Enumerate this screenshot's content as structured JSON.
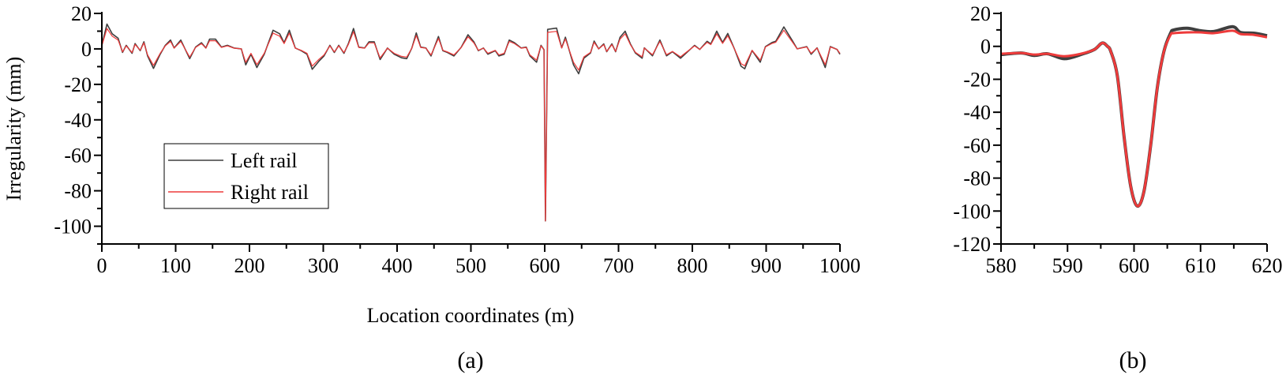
{
  "chart_data": [
    {
      "type": "line",
      "panel_label": "(a)",
      "xlabel": "Location coordinates (m)",
      "ylabel": "Irregularity (mm)",
      "xlim": [
        0,
        1000
      ],
      "ylim": [
        -110,
        20
      ],
      "xticks": [
        "0",
        "100",
        "200",
        "300",
        "400",
        "500",
        "600",
        "700",
        "800",
        "900",
        "1000"
      ],
      "yticks": [
        "20",
        "0",
        "-20",
        "-40",
        "-60",
        "-80",
        "-100"
      ],
      "grid": false,
      "legend": "center-left",
      "series": [
        {
          "name": "Left rail",
          "color": "#3f3f3f",
          "x": [
            0,
            7,
            14,
            22,
            28,
            33,
            41,
            45,
            52,
            57,
            62,
            70,
            79,
            86,
            93,
            98,
            107,
            119,
            127,
            135,
            141,
            146,
            154,
            162,
            170,
            179,
            189,
            195,
            202,
            210,
            220,
            232,
            241,
            247,
            254,
            262,
            270,
            278,
            285,
            294,
            301,
            309,
            315,
            321,
            328,
            334,
            341,
            348,
            356,
            362,
            369,
            377,
            387,
            396,
            406,
            413,
            420,
            426,
            432,
            439,
            446,
            456,
            462,
            468,
            477,
            487,
            496,
            504,
            510,
            517,
            523,
            533,
            538,
            545,
            552,
            559,
            568,
            575,
            580,
            589,
            595,
            599,
            601,
            604,
            616,
            623,
            628,
            639,
            646,
            653,
            662,
            667,
            673,
            680,
            684,
            691,
            696,
            702,
            709,
            716,
            723,
            732,
            735,
            746,
            756,
            765,
            773,
            784,
            790,
            803,
            810,
            820,
            825,
            833,
            841,
            848,
            857,
            866,
            871,
            881,
            892,
            899,
            908,
            913,
            924,
            935,
            942,
            955,
            961,
            969,
            980,
            987,
            996,
            1000
          ],
          "y": [
            2,
            14,
            8.5,
            6,
            -2,
            2,
            -2.5,
            3,
            -1,
            4,
            -4,
            -11,
            -3,
            2,
            5,
            0.5,
            5,
            -5.5,
            1,
            3.5,
            0.5,
            5.5,
            5.5,
            1,
            2,
            0.5,
            0,
            -9,
            -3,
            -10.5,
            -3,
            10.5,
            8.5,
            3.5,
            10.5,
            0.5,
            -1,
            -3,
            -11.5,
            -7,
            -4,
            2,
            -2,
            2,
            -2.5,
            3,
            11.5,
            1,
            0.5,
            4,
            4,
            -6,
            0.5,
            -3,
            -5,
            -5.5,
            0.5,
            9,
            1,
            0.5,
            -4,
            7,
            -1,
            -2,
            -4,
            1,
            8,
            4,
            -1,
            0.5,
            -3,
            -1,
            -4,
            -3,
            5,
            3.5,
            0.5,
            1,
            -4,
            -7.5,
            2,
            -0.5,
            -97,
            11,
            11.7,
            0.6,
            6.6,
            -9,
            -14,
            -5.3,
            -2.3,
            4.4,
            0,
            2.8,
            -1.6,
            2.8,
            -1.6,
            6.5,
            10,
            2.8,
            -2.4,
            -5.3,
            0.6,
            -3.9,
            5,
            -3.9,
            -1.6,
            -5.3,
            -3,
            2,
            -0.3,
            4.3,
            2.8,
            10,
            3.6,
            8.7,
            0,
            -9.8,
            -11.2,
            -0.9,
            -7.5,
            1.3,
            3.6,
            4.3,
            12.4,
            5,
            0,
            1.3,
            -3,
            0.6,
            -10.5,
            1.3,
            -0.3,
            -3
          ]
        },
        {
          "name": "Right rail",
          "color": "#ee3b3b",
          "x": [
            0,
            7,
            14,
            22,
            28,
            33,
            41,
            45,
            52,
            57,
            62,
            70,
            79,
            86,
            93,
            98,
            107,
            119,
            127,
            135,
            141,
            146,
            154,
            162,
            170,
            179,
            189,
            195,
            202,
            210,
            220,
            232,
            241,
            247,
            254,
            262,
            270,
            278,
            285,
            294,
            301,
            309,
            315,
            321,
            328,
            334,
            341,
            348,
            356,
            362,
            369,
            377,
            387,
            396,
            406,
            413,
            420,
            426,
            432,
            439,
            446,
            456,
            462,
            468,
            477,
            487,
            496,
            504,
            510,
            517,
            523,
            533,
            538,
            545,
            552,
            559,
            568,
            575,
            580,
            589,
            595,
            599,
            601,
            604,
            616,
            623,
            628,
            639,
            646,
            653,
            662,
            667,
            673,
            680,
            684,
            691,
            696,
            702,
            709,
            716,
            723,
            732,
            735,
            746,
            756,
            765,
            773,
            784,
            790,
            803,
            810,
            820,
            825,
            833,
            841,
            848,
            857,
            866,
            871,
            881,
            892,
            899,
            908,
            913,
            924,
            935,
            942,
            955,
            961,
            969,
            980,
            987,
            996,
            1000
          ],
          "y": [
            1.7,
            11.5,
            7.2,
            5,
            -1.7,
            1.7,
            -2.1,
            2.5,
            -0.8,
            3.4,
            -3.4,
            -9.3,
            -2.5,
            1.7,
            4.2,
            0.4,
            4.2,
            -4.6,
            0.8,
            3,
            0.4,
            4.6,
            4.6,
            0.8,
            1.7,
            0.4,
            0,
            -7.6,
            -2.5,
            -8.9,
            -2.5,
            8.9,
            7.2,
            3,
            8.9,
            0.4,
            -0.8,
            -2.5,
            -9.7,
            -5.9,
            -3.4,
            1.7,
            -1.7,
            1.7,
            -2.1,
            2.5,
            9.7,
            0.8,
            0.4,
            3.4,
            3.4,
            -5.1,
            0.4,
            -2.5,
            -4.2,
            -4.6,
            0.4,
            7.6,
            0.8,
            0.4,
            -3.4,
            5.9,
            -0.8,
            -1.7,
            -3.4,
            0.8,
            6.8,
            3.4,
            -0.8,
            0.4,
            -2.5,
            -0.8,
            -3.4,
            -2.5,
            4.2,
            3,
            0.4,
            0.8,
            -3.4,
            -6.3,
            1.7,
            -0.4,
            -97,
            9.3,
            9.9,
            0.5,
            5.6,
            -7.6,
            -11.9,
            -4.5,
            -2,
            3.7,
            0,
            2.4,
            -1.4,
            2.4,
            -1.4,
            5.5,
            8.5,
            2.4,
            -2,
            -4.5,
            0.5,
            -3.3,
            4.2,
            -3.3,
            -1.4,
            -4.5,
            -2.5,
            1.7,
            -0.3,
            3.7,
            2.4,
            8.5,
            3.1,
            7.4,
            0,
            -8.3,
            -9.5,
            -0.8,
            -6.4,
            1.1,
            3.1,
            3.7,
            10.5,
            4.2,
            0,
            1.1,
            -2.5,
            0.5,
            -8.9,
            1.1,
            -0.3,
            -2.5
          ]
        }
      ]
    },
    {
      "type": "line",
      "panel_label": "(b)",
      "xlabel": "",
      "ylabel": "",
      "xlim": [
        580,
        620
      ],
      "ylim": [
        -120,
        20
      ],
      "xticks": [
        "580",
        "590",
        "600",
        "610",
        "620"
      ],
      "yticks": [
        "20",
        "0",
        "-20",
        "-40",
        "-60",
        "-80",
        "-100",
        "-120"
      ],
      "grid": false,
      "series": [
        {
          "color": "#3f3f3f",
          "x": [
            580,
            583,
            585,
            587,
            589.5,
            592,
            594,
            595.2,
            596,
            596.5,
            597.5,
            598.5,
            599.5,
            600.5,
            601.5,
            602.5,
            603.5,
            604.5,
            605.5,
            606,
            608,
            610,
            612,
            614.8,
            616,
            618,
            620
          ],
          "y": [
            -5,
            -4,
            -5.5,
            -4.5,
            -7.5,
            -5,
            -2,
            2,
            0,
            -3,
            -18,
            -55,
            -85,
            -97,
            -88,
            -60,
            -25,
            -3,
            8,
            10,
            11,
            9.5,
            9,
            12,
            8.5,
            8,
            6.5
          ]
        },
        {
          "color": "#ee3b3b",
          "x": [
            580,
            583,
            585,
            587,
            589.5,
            592,
            594,
            595.2,
            596,
            596.5,
            597.5,
            598.5,
            599.5,
            600.5,
            601.5,
            602.5,
            603.5,
            604.5,
            605.5,
            606,
            608,
            610,
            612,
            614.8,
            616,
            618,
            620
          ],
          "y": [
            -4.5,
            -4,
            -5,
            -4.5,
            -6,
            -4.5,
            -2,
            2,
            0,
            -3,
            -18,
            -55,
            -85,
            -97,
            -88,
            -60,
            -25,
            -3,
            7,
            8,
            8.5,
            8.5,
            8,
            9.5,
            7.5,
            7,
            5.5
          ]
        }
      ]
    }
  ]
}
